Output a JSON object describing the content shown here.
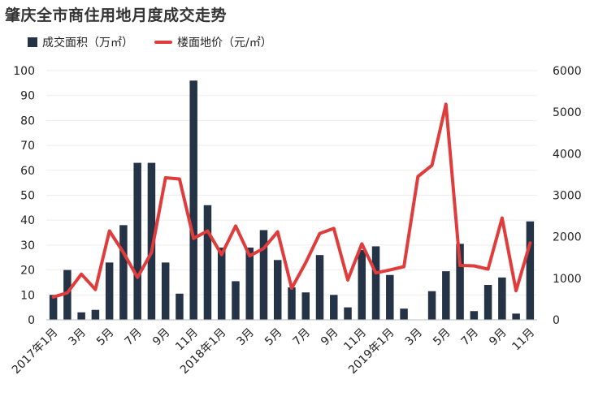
{
  "title": "肇庆全市商住用地月度成交走势",
  "chart_data": {
    "type": "bar",
    "title": "肇庆全市商住用地月度成交走势",
    "colors": {
      "bar": "#253347",
      "line": "#e03c3c"
    },
    "categories": [
      "2017-01",
      "2017-02",
      "2017-03",
      "2017-04",
      "2017-05",
      "2017-06",
      "2017-07",
      "2017-08",
      "2017-09",
      "2017-10",
      "2017-11",
      "2017-12",
      "2018-01",
      "2018-02",
      "2018-03",
      "2018-04",
      "2018-05",
      "2018-06",
      "2018-07",
      "2018-08",
      "2018-09",
      "2018-10",
      "2018-11",
      "2018-12",
      "2019-01",
      "2019-02",
      "2019-03",
      "2019-04",
      "2019-05",
      "2019-06",
      "2019-07",
      "2019-08",
      "2019-09",
      "2019-10",
      "2019-11"
    ],
    "x_tick_labels": [
      "2017年1月",
      "",
      "3月",
      "",
      "5月",
      "",
      "7月",
      "",
      "9月",
      "",
      "11月",
      "",
      "2018年1月",
      "",
      "3月",
      "",
      "5月",
      "",
      "7月",
      "",
      "9月",
      "",
      "11月",
      "",
      "2019年1月",
      "",
      "3月",
      "",
      "5月",
      "",
      "7月",
      "",
      "9月",
      "",
      "11月"
    ],
    "series": [
      {
        "name": "成交面积（万㎡）",
        "type": "bar",
        "axis": "left",
        "values": [
          10,
          20,
          3,
          4,
          23,
          38,
          63,
          63,
          23,
          10.5,
          96,
          46,
          29,
          15.5,
          29,
          36,
          24,
          13,
          11,
          26,
          10,
          5,
          28,
          29.5,
          18,
          4.5,
          0,
          11.5,
          19.5,
          30.5,
          3.5,
          14,
          17,
          2.5,
          39.5
        ]
      },
      {
        "name": "楼面地价（元/㎡）",
        "type": "line",
        "axis": "right",
        "values": [
          550,
          650,
          1100,
          730,
          2140,
          1620,
          1020,
          1620,
          3420,
          3390,
          1960,
          2140,
          1570,
          2260,
          1540,
          1720,
          2120,
          760,
          1380,
          2080,
          2200,
          960,
          1830,
          1130,
          1200,
          1280,
          3450,
          3720,
          5190,
          1310,
          1300,
          1220,
          2450,
          700,
          1850
        ]
      }
    ],
    "y_left": {
      "min": 0,
      "max": 100,
      "ticks": [
        0,
        10,
        20,
        30,
        40,
        50,
        60,
        70,
        80,
        90,
        100
      ]
    },
    "y_right": {
      "min": 0,
      "max": 6000,
      "ticks": [
        0,
        1000,
        2000,
        3000,
        4000,
        5000,
        6000
      ]
    },
    "legend_position": "top-left",
    "grid": true
  }
}
